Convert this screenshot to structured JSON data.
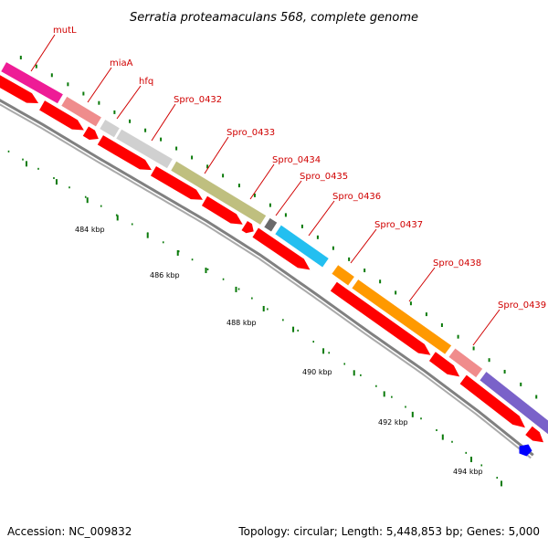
{
  "title": "Serratia proteamaculans 568, complete genome",
  "footer": {
    "accession": "Accession: NC_009832",
    "summary": "Topology: circular; Length: 5,448,853 bp; Genes: 5,000"
  },
  "genes": [
    {
      "label": "mutL",
      "color": "#ee1c96"
    },
    {
      "label": "miaA",
      "color": "#ef8c8c"
    },
    {
      "label": "hfq",
      "color": "#d0d0d0"
    },
    {
      "label": "Spro_0432",
      "color": "#d0d0d0"
    },
    {
      "label": "Spro_0433",
      "color": "#bfbf7f"
    },
    {
      "label": "Spro_0434",
      "color": "#6a6a6a"
    },
    {
      "label": "Spro_0435",
      "color": "#23bff0"
    },
    {
      "label": "Spro_0436",
      "color": "#ff9900"
    },
    {
      "label": "Spro_0437",
      "color": "#ff9900"
    },
    {
      "label": "Spro_0438",
      "color": "#f08c8c"
    },
    {
      "label": "Spro_0439",
      "color": "#7a62c9"
    }
  ],
  "scale": [
    {
      "label": "484 kbp"
    },
    {
      "label": "486 kbp"
    },
    {
      "label": "488 kbp"
    },
    {
      "label": "490 kbp"
    },
    {
      "label": "492 kbp"
    },
    {
      "label": "494 kbp"
    }
  ],
  "colors": {
    "cds": "#ff0000",
    "backbone": "#808080",
    "tick": "#0a7a0a",
    "label_line": "#d00000",
    "blue_feature": "#0000ff"
  }
}
